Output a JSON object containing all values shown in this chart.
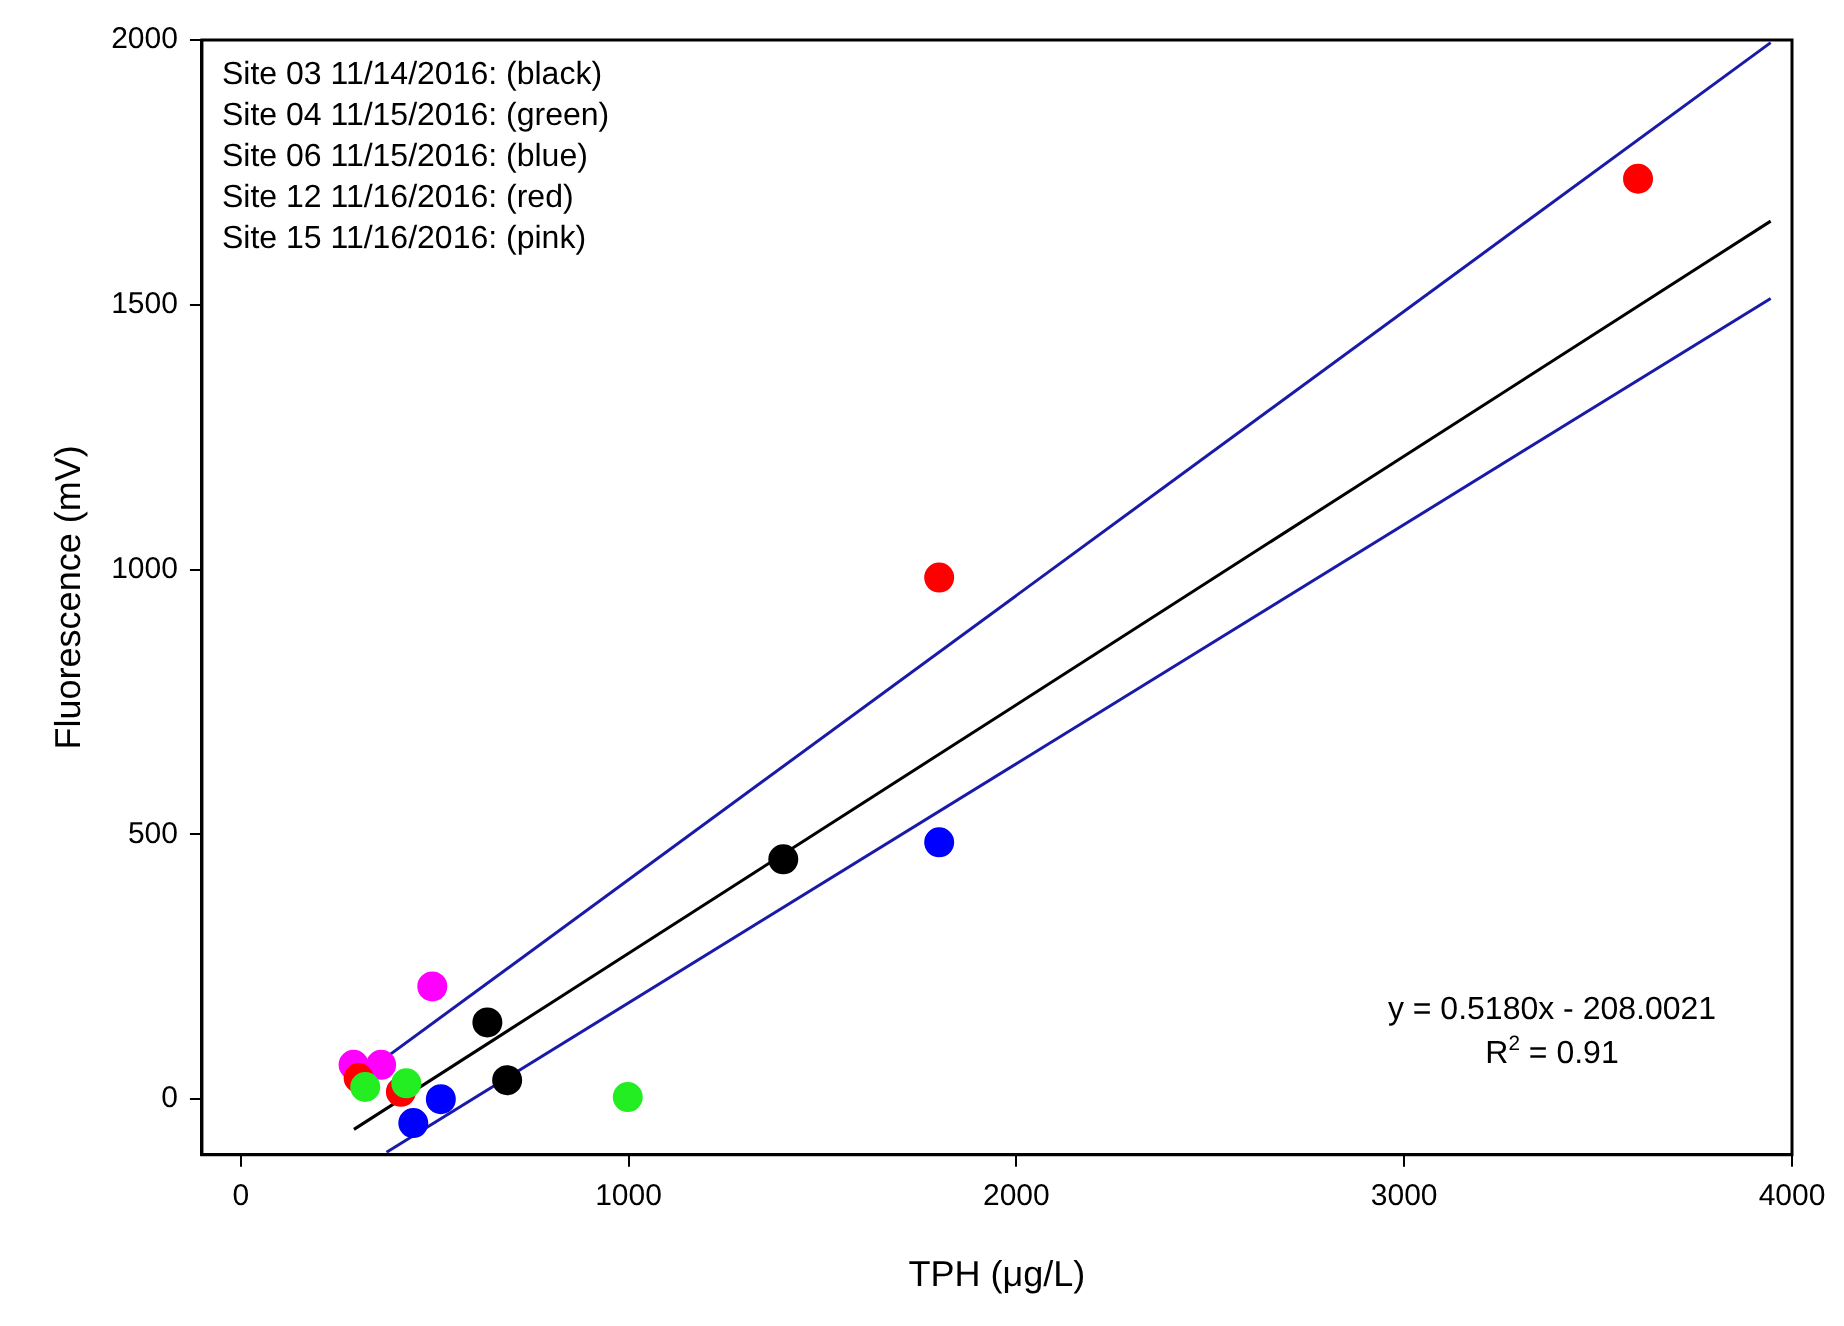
{
  "chart_data": {
    "type": "scatter",
    "xlabel": "TPH (μg/L)",
    "ylabel": "Fluorescence (mV)",
    "xlim": [
      -100,
      4000
    ],
    "xticks": [
      0,
      1000,
      2000,
      3000,
      4000
    ],
    "ylim": [
      -105,
      2000
    ],
    "yticks": [
      0,
      500,
      1000,
      1500,
      2000
    ],
    "grid": false,
    "legend": false,
    "marker": "circle",
    "series": [
      {
        "color": "#000000",
        "x": [
          636,
          687,
          1399
        ],
        "values": [
          145,
          36,
          453
        ]
      },
      {
        "color": "#22ee22",
        "x": [
          321,
          427,
          998
        ],
        "values": [
          23,
          30,
          4
        ]
      },
      {
        "color": "#0000ff",
        "x": [
          445,
          516,
          1801
        ],
        "values": [
          -45,
          0,
          485
        ]
      },
      {
        "color": "#ff0000",
        "x": [
          304,
          413,
          1801,
          3603
        ],
        "values": [
          40,
          14,
          985,
          1738
        ]
      },
      {
        "color": "#ff00ff",
        "x": [
          291,
          362,
          494
        ],
        "values": [
          65,
          65,
          213
        ]
      },
      {
        "type": "line",
        "marker": "none",
        "color": "#000000",
        "x": [
          292,
          3945
        ],
        "values": [
          -57,
          1658
        ]
      },
      {
        "type": "line",
        "marker": "none",
        "color": "#1a1aa8",
        "x": [
          293,
          3945
        ],
        "values": [
          35,
          1995
        ]
      },
      {
        "type": "line",
        "marker": "none",
        "color": "#1a1aa8",
        "x": [
          376,
          3945
        ],
        "values": [
          -100,
          1512
        ]
      }
    ],
    "annotations": [
      "Site 03 11/14/2016: (black)",
      "Site 04 11/15/2016: (green)",
      "Site 06 11/15/2016: (blue)",
      "Site 12 11/16/2016: (red)",
      "Site 15 11/16/2016: (pink)",
      "y = 0.5180x - 208.0021",
      "R$^{2}$ = 0.91"
    ]
  }
}
